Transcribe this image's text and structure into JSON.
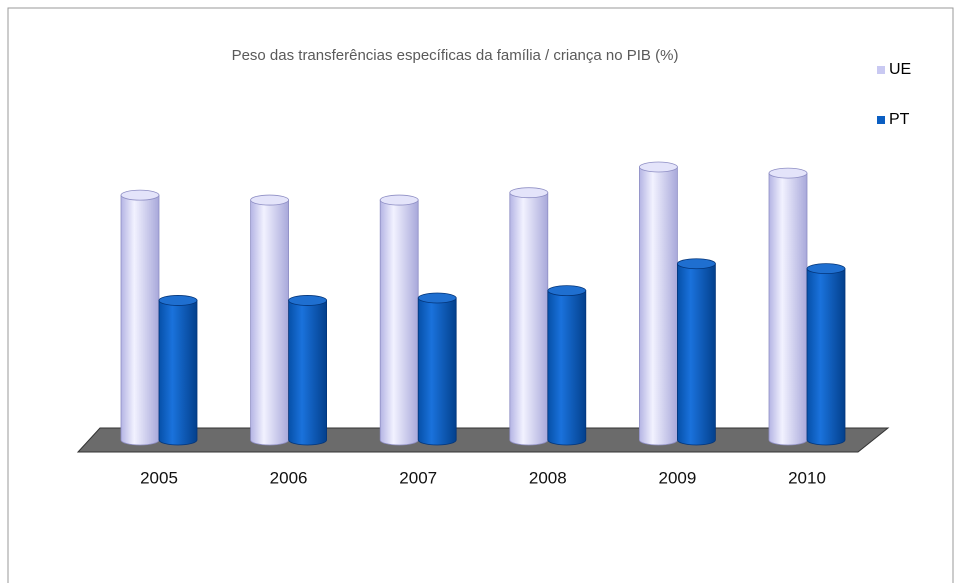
{
  "chart_data": {
    "type": "bar3d",
    "title": "Peso das transferências específicas da família / criança no PIB (%)",
    "categories": [
      "2005",
      "2006",
      "2007",
      "2008",
      "2009",
      "2010"
    ],
    "series": [
      {
        "name": "UE",
        "color": "#c9c9f2",
        "values": [
          2.0,
          1.96,
          1.96,
          2.02,
          2.23,
          2.18
        ]
      },
      {
        "name": "PT",
        "color": "#0a5ec2",
        "values": [
          1.14,
          1.14,
          1.16,
          1.22,
          1.44,
          1.4
        ]
      }
    ]
  }
}
